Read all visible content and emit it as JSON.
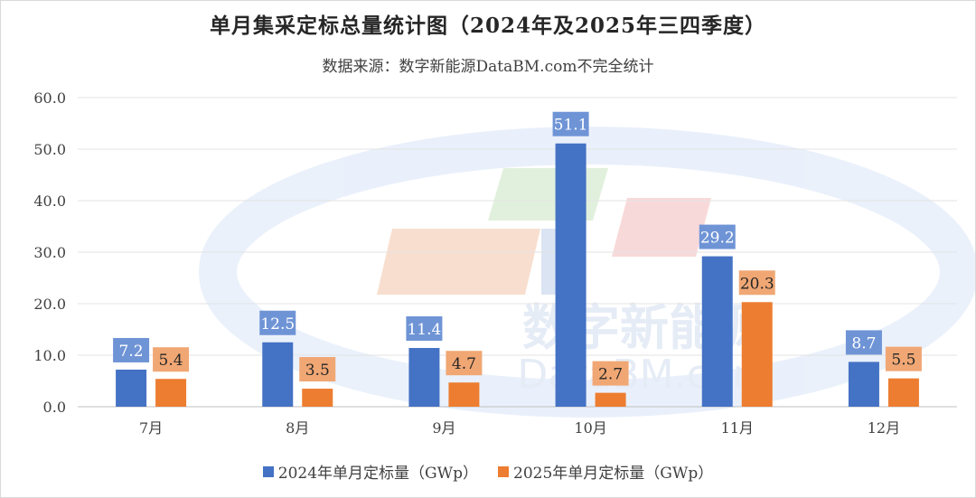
{
  "chart_data": {
    "type": "bar",
    "title": "单月集采定标总量统计图（2024年及2025年三四季度）",
    "subtitle": "数据来源：数字新能源DataBM.com不完全统计",
    "categories": [
      "7月",
      "8月",
      "9月",
      "10月",
      "11月",
      "12月"
    ],
    "series": [
      {
        "name": "2024年单月定标量（GWp）",
        "values": [
          7.2,
          12.5,
          11.4,
          51.1,
          29.2,
          8.7
        ],
        "color": "#4472c4"
      },
      {
        "name": "2025年单月定标量（GWp）",
        "values": [
          5.4,
          3.5,
          4.7,
          2.7,
          20.3,
          5.5
        ],
        "color": "#ed7d31"
      }
    ],
    "yticks": [
      "0.0",
      "10.0",
      "20.0",
      "30.0",
      "40.0",
      "50.0",
      "60.0"
    ],
    "ylim": [
      0,
      60
    ],
    "grid": true,
    "legend": "bottom"
  },
  "watermark": {
    "chinese": "数字新能源",
    "latin": "DataBM.com"
  }
}
